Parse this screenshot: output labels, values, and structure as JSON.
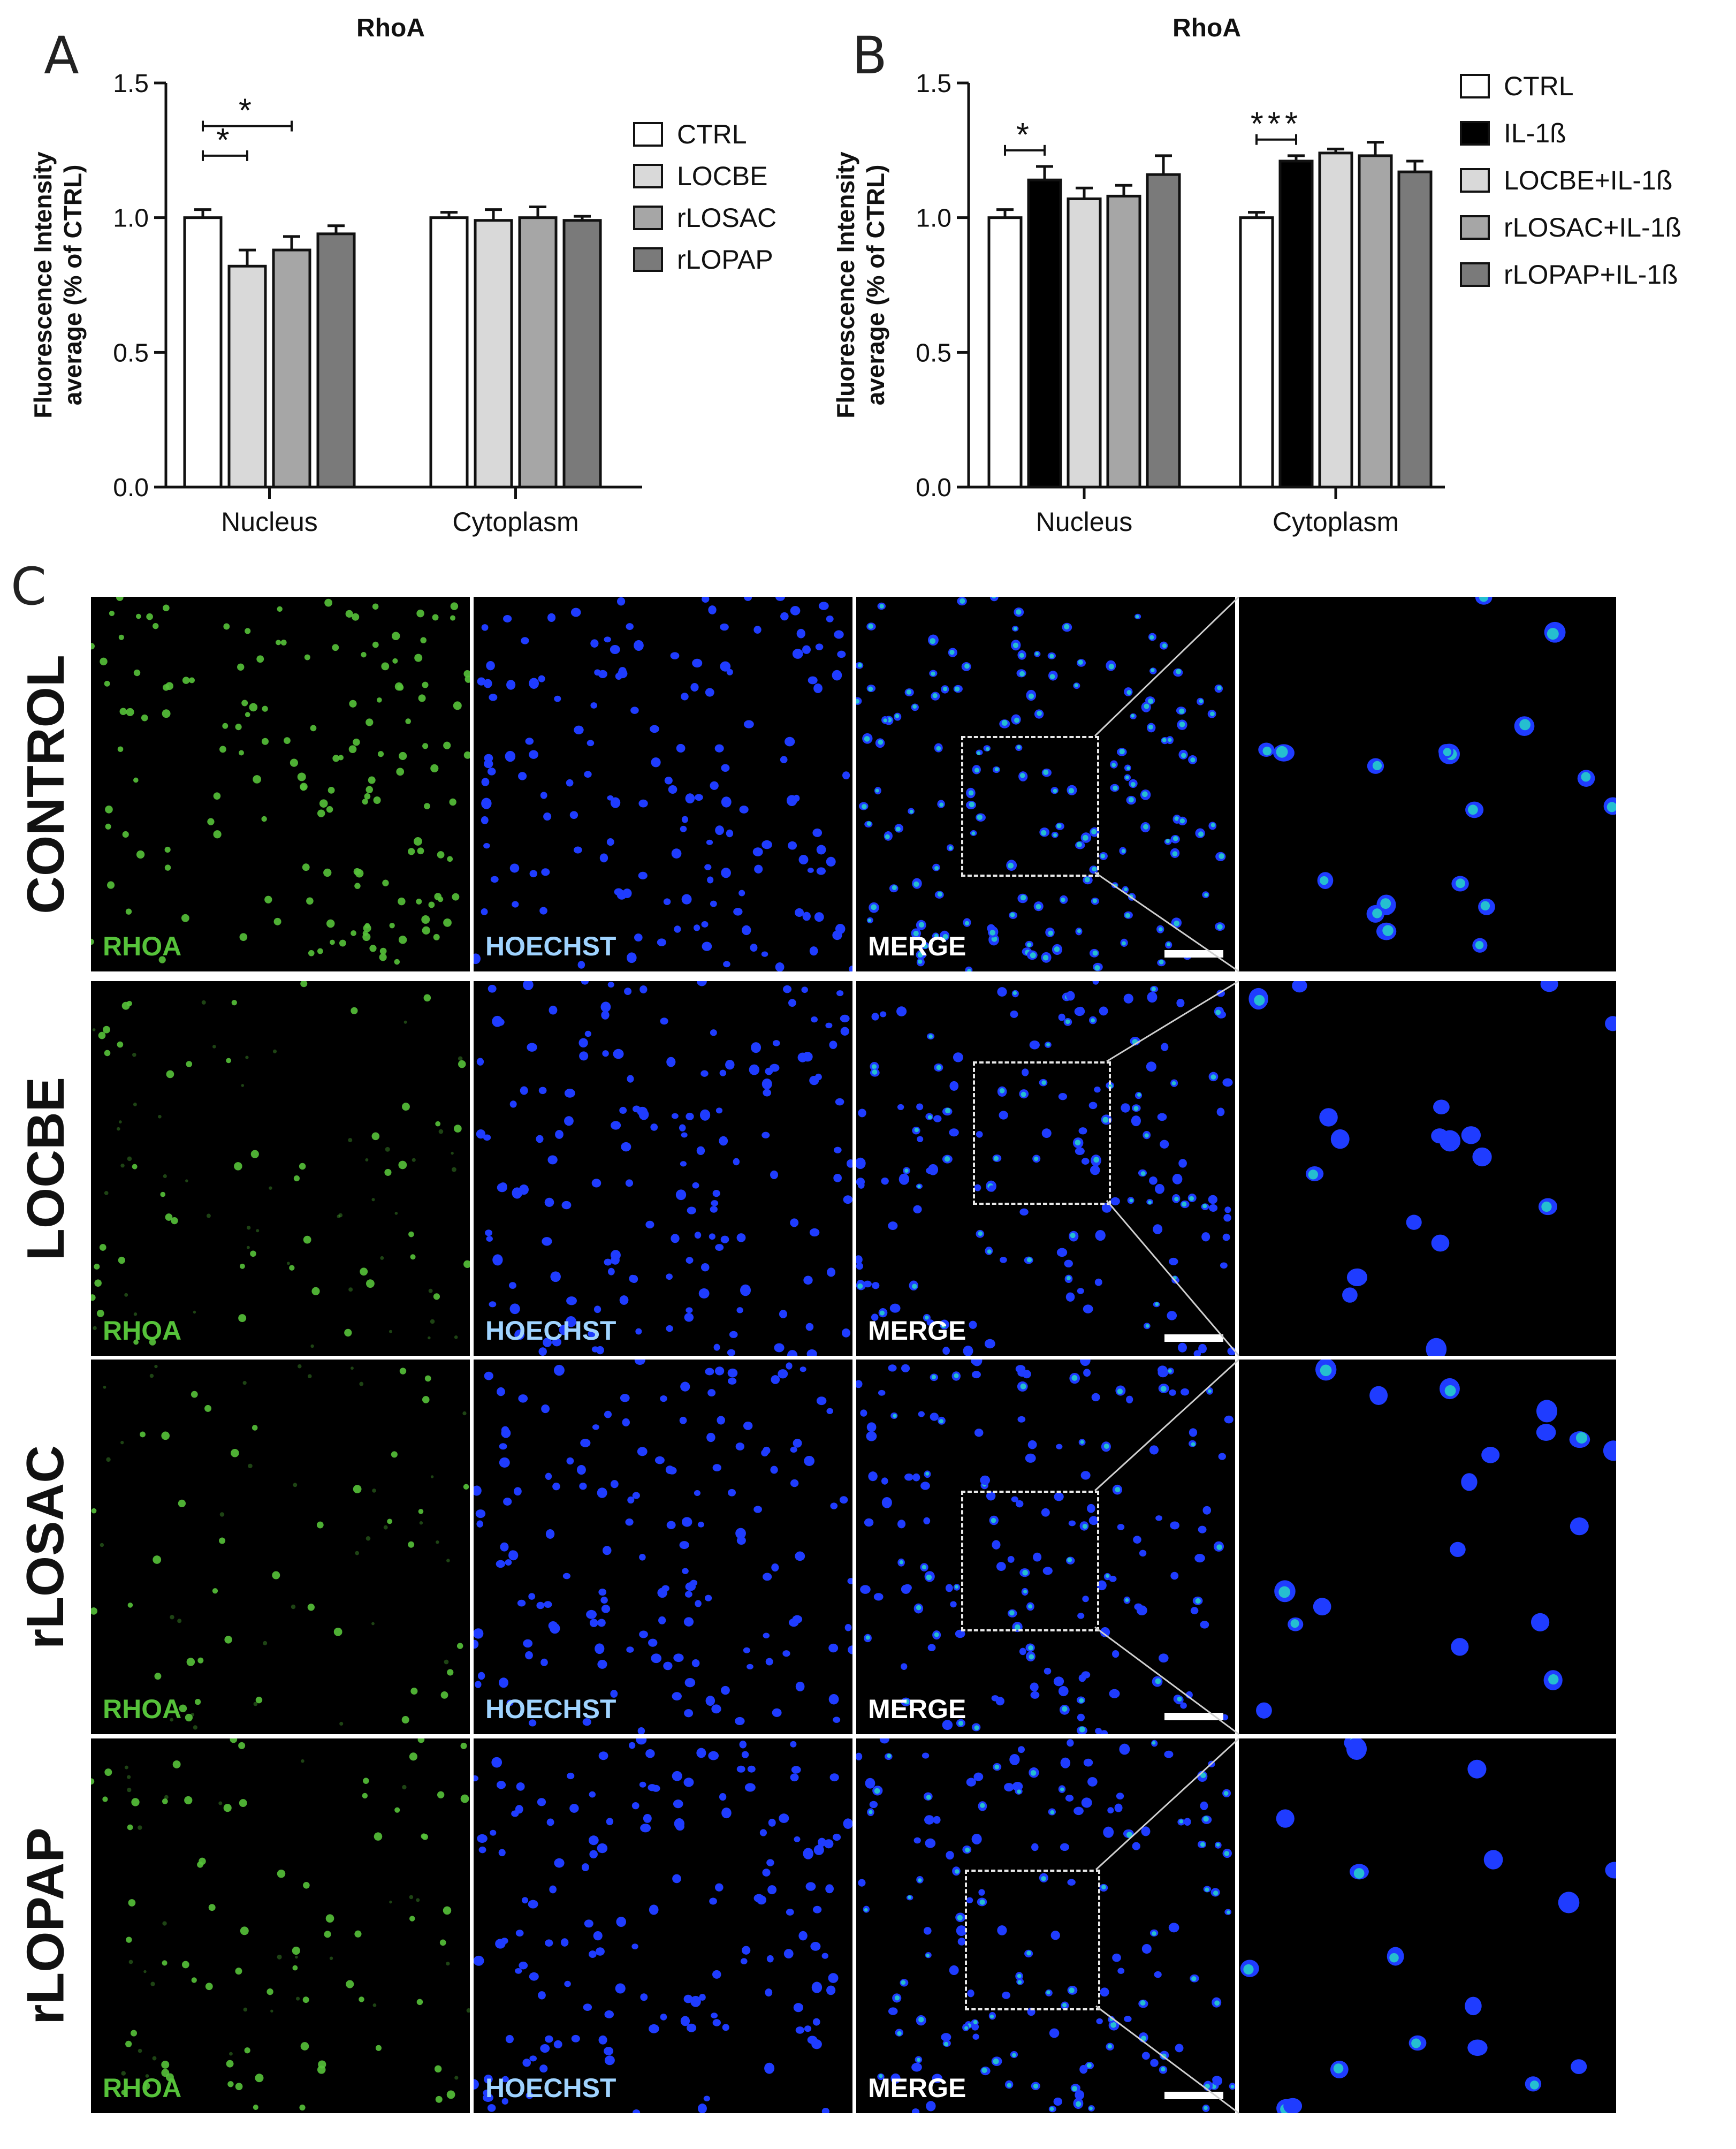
{
  "colors": {
    "rhoa": "#56c23a",
    "hoechst": "#9fd3ff",
    "merge": "#ffffff",
    "nucleus_blue": "#1f3cff",
    "nucleus_cyan": "#27d6c8",
    "ctrl": "#ffffff",
    "il1b": "#000000",
    "locbe": "#d9d9d9",
    "rlosac": "#a6a6a6",
    "rlopap": "#7a7a7a"
  },
  "panels": {
    "a": "A",
    "b": "B",
    "c": "C"
  },
  "chart_data": [
    {
      "type": "bar",
      "panel": "A",
      "title": "RhoA",
      "xlabel": "",
      "ylabel": "Fluorescence Intensity average (% of CTRL)",
      "ylim": [
        0,
        1.5
      ],
      "yticks": [
        "0.0",
        "0.5",
        "1.0",
        "1.5"
      ],
      "categories": [
        "Nucleus",
        "Cytoplasm"
      ],
      "legend_position": "right",
      "series": [
        {
          "name": "CTRL",
          "values": [
            1.0,
            1.0
          ],
          "errors": [
            0.03,
            0.02
          ],
          "color": "#ffffff"
        },
        {
          "name": "LOCBE",
          "values": [
            0.82,
            0.99
          ],
          "errors": [
            0.06,
            0.04
          ],
          "color": "#d9d9d9"
        },
        {
          "name": "rLOSAC",
          "values": [
            0.88,
            1.0
          ],
          "errors": [
            0.05,
            0.04
          ],
          "color": "#a6a6a6"
        },
        {
          "name": "rLOPAP",
          "values": [
            0.94,
            0.99
          ],
          "errors": [
            0.03,
            0.015
          ],
          "color": "#7a7a7a"
        }
      ],
      "significance": [
        {
          "category": 0,
          "from": 0,
          "to": 1,
          "y": 1.23,
          "label": "*"
        },
        {
          "category": 0,
          "from": 0,
          "to": 2,
          "y": 1.34,
          "label": "*"
        }
      ]
    },
    {
      "type": "bar",
      "panel": "B",
      "title": "RhoA",
      "xlabel": "",
      "ylabel": "Fluorescence Intensity average (% of CTRL)",
      "ylim": [
        0,
        1.5
      ],
      "yticks": [
        "0.0",
        "0.5",
        "1.0",
        "1.5"
      ],
      "categories": [
        "Nucleus",
        "Cytoplasm"
      ],
      "legend_position": "right",
      "series": [
        {
          "name": "CTRL",
          "values": [
            1.0,
            1.0
          ],
          "errors": [
            0.03,
            0.02
          ],
          "color": "#ffffff"
        },
        {
          "name": "IL-1ß",
          "values": [
            1.14,
            1.21
          ],
          "errors": [
            0.05,
            0.02
          ],
          "color": "#000000"
        },
        {
          "name": "LOCBE+IL-1ß",
          "values": [
            1.07,
            1.24
          ],
          "errors": [
            0.04,
            0.015
          ],
          "color": "#d9d9d9"
        },
        {
          "name": "rLOSAC+IL-1ß",
          "values": [
            1.08,
            1.23
          ],
          "errors": [
            0.04,
            0.05
          ],
          "color": "#a6a6a6"
        },
        {
          "name": "rLOPAP+IL-1ß",
          "values": [
            1.16,
            1.17
          ],
          "errors": [
            0.07,
            0.04
          ],
          "color": "#7a7a7a"
        }
      ],
      "significance": [
        {
          "category": 0,
          "from": 0,
          "to": 1,
          "y": 1.25,
          "label": "*"
        },
        {
          "category": 1,
          "from": 0,
          "to": 1,
          "y": 1.29,
          "label": "***"
        }
      ]
    }
  ],
  "micrographs": {
    "columns": [
      {
        "label": "RHOA",
        "type": "rhoa"
      },
      {
        "label": "HOECHST",
        "type": "hoechst"
      },
      {
        "label": "MERGE",
        "type": "merge"
      },
      {
        "label": "",
        "type": "zoom"
      }
    ],
    "rows": [
      {
        "label": "CONTROL",
        "signal": 1.0
      },
      {
        "label": "LOCBE",
        "signal": 0.35
      },
      {
        "label": "rLOSAC",
        "signal": 0.3
      },
      {
        "label": "rLOPAP",
        "signal": 0.5
      }
    ]
  }
}
